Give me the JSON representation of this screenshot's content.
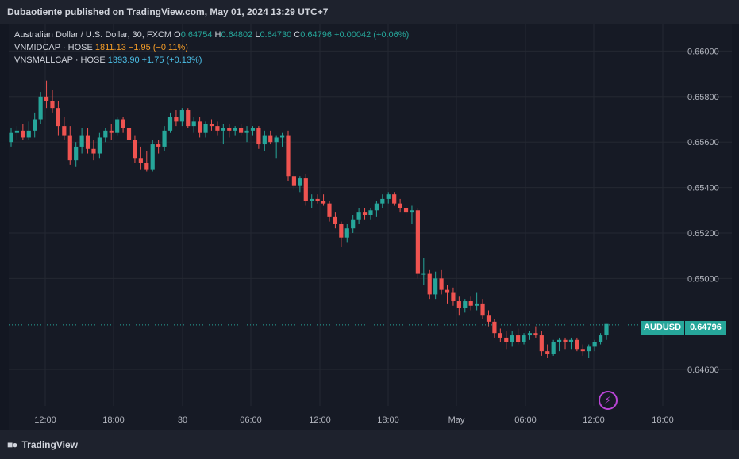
{
  "header": {
    "publisher_text": "Dubaotiente published on TradingView.com, May 01, 2024 13:29 UTC+7"
  },
  "legend": {
    "main": {
      "title": "Australian Dollar / U.S. Dollar, 30, FXCM",
      "o_label": "O",
      "o_value": "0.64754",
      "h_label": "H",
      "h_value": "0.64802",
      "l_label": "L",
      "l_value": "0.64730",
      "c_label": "C",
      "c_value": "0.64796",
      "change": "+0.00042 (+0.06%)"
    },
    "vnmidcap": {
      "label": "VNMIDCAP · HOSE",
      "value": "1811.13",
      "change": "−1.95 (−0.11%)"
    },
    "vnsmallcap": {
      "label": "VNSMALLCAP · HOSE",
      "value": "1393.90",
      "change": "+1.75 (+0.13%)"
    }
  },
  "price_tag": {
    "symbol": "AUDUSD",
    "value": "0.64796"
  },
  "footer": {
    "brand": "TradingView"
  },
  "colors": {
    "up": "#26a69a",
    "down": "#ef5350",
    "grid": "#242832",
    "axis_text": "#b2b5be"
  },
  "icons": {
    "flash": "lightning-icon",
    "logo": "tradingview-logo-icon"
  },
  "chart_data": {
    "type": "candlestick",
    "symbol": "AUDUSD",
    "interval": "30",
    "y_ticks": [
      "0.66000",
      "0.65800",
      "0.65600",
      "0.65400",
      "0.65200",
      "0.65000",
      "0.64600"
    ],
    "y_tick_values": [
      0.66,
      0.658,
      0.656,
      0.654,
      0.652,
      0.65,
      0.646
    ],
    "ylim": [
      0.6444,
      0.6612
    ],
    "x_ticks": [
      "12:00",
      "18:00",
      "30",
      "06:00",
      "12:00",
      "18:00",
      "May",
      "06:00",
      "12:00",
      "18:00"
    ],
    "last_price": 0.64796,
    "grid": true,
    "candles": [
      [
        0.656,
        0.6566,
        0.6558,
        0.6564
      ],
      [
        0.6564,
        0.6567,
        0.6561,
        0.6565
      ],
      [
        0.6565,
        0.6568,
        0.6561,
        0.6562
      ],
      [
        0.6562,
        0.6569,
        0.6561,
        0.6565
      ],
      [
        0.6565,
        0.6573,
        0.6562,
        0.657
      ],
      [
        0.657,
        0.6582,
        0.6568,
        0.658
      ],
      [
        0.658,
        0.6587,
        0.6575,
        0.6578
      ],
      [
        0.6578,
        0.6583,
        0.6573,
        0.6575
      ],
      [
        0.6575,
        0.6578,
        0.6563,
        0.6567
      ],
      [
        0.6567,
        0.6571,
        0.6561,
        0.6563
      ],
      [
        0.6563,
        0.6567,
        0.655,
        0.6552
      ],
      [
        0.6552,
        0.656,
        0.6549,
        0.6558
      ],
      [
        0.6558,
        0.6566,
        0.6555,
        0.6563
      ],
      [
        0.6563,
        0.6566,
        0.6555,
        0.6557
      ],
      [
        0.6557,
        0.6561,
        0.6552,
        0.6555
      ],
      [
        0.6555,
        0.6564,
        0.6553,
        0.6562
      ],
      [
        0.6562,
        0.6566,
        0.656,
        0.6565
      ],
      [
        0.6565,
        0.6568,
        0.6561,
        0.6564
      ],
      [
        0.6564,
        0.6571,
        0.6563,
        0.657
      ],
      [
        0.657,
        0.6571,
        0.6564,
        0.6566
      ],
      [
        0.6566,
        0.6569,
        0.6559,
        0.6561
      ],
      [
        0.6561,
        0.6563,
        0.6551,
        0.6553
      ],
      [
        0.6553,
        0.6558,
        0.6548,
        0.6551
      ],
      [
        0.6551,
        0.6556,
        0.6547,
        0.6548
      ],
      [
        0.6548,
        0.6561,
        0.6547,
        0.6559
      ],
      [
        0.6559,
        0.6561,
        0.6555,
        0.6558
      ],
      [
        0.6558,
        0.6567,
        0.6556,
        0.6565
      ],
      [
        0.6565,
        0.6573,
        0.6564,
        0.6571
      ],
      [
        0.6571,
        0.6574,
        0.6567,
        0.6569
      ],
      [
        0.6569,
        0.6575,
        0.6567,
        0.6574
      ],
      [
        0.6574,
        0.6575,
        0.6566,
        0.6567
      ],
      [
        0.6567,
        0.6571,
        0.6564,
        0.6569
      ],
      [
        0.6569,
        0.6571,
        0.6562,
        0.6564
      ],
      [
        0.6564,
        0.6569,
        0.6562,
        0.6568
      ],
      [
        0.6568,
        0.657,
        0.6565,
        0.6567
      ],
      [
        0.6567,
        0.6569,
        0.6563,
        0.6565
      ],
      [
        0.6565,
        0.6568,
        0.6559,
        0.6566
      ],
      [
        0.6566,
        0.6568,
        0.6562,
        0.6565
      ],
      [
        0.6565,
        0.6567,
        0.6563,
        0.6566
      ],
      [
        0.6566,
        0.6568,
        0.6563,
        0.6564
      ],
      [
        0.6564,
        0.6567,
        0.656,
        0.6565
      ],
      [
        0.6565,
        0.6567,
        0.6563,
        0.6566
      ],
      [
        0.6566,
        0.6567,
        0.6557,
        0.6559
      ],
      [
        0.6559,
        0.6565,
        0.6556,
        0.6563
      ],
      [
        0.6563,
        0.6565,
        0.6559,
        0.656
      ],
      [
        0.656,
        0.6563,
        0.6553,
        0.6562
      ],
      [
        0.6562,
        0.6564,
        0.6558,
        0.6563
      ],
      [
        0.6563,
        0.6565,
        0.6543,
        0.6545
      ],
      [
        0.6545,
        0.6547,
        0.6539,
        0.6541
      ],
      [
        0.6541,
        0.6545,
        0.6538,
        0.6544
      ],
      [
        0.6544,
        0.6546,
        0.6532,
        0.6534
      ],
      [
        0.6534,
        0.6537,
        0.6531,
        0.6535
      ],
      [
        0.6535,
        0.6537,
        0.6533,
        0.6534
      ],
      [
        0.6534,
        0.6537,
        0.6532,
        0.6533
      ],
      [
        0.6533,
        0.6534,
        0.6525,
        0.6527
      ],
      [
        0.6527,
        0.6529,
        0.6522,
        0.6524
      ],
      [
        0.6524,
        0.6525,
        0.6514,
        0.6518
      ],
      [
        0.6518,
        0.6524,
        0.6516,
        0.6522
      ],
      [
        0.6522,
        0.6528,
        0.652,
        0.6526
      ],
      [
        0.6526,
        0.6531,
        0.6524,
        0.6529
      ],
      [
        0.6529,
        0.6531,
        0.6526,
        0.6528
      ],
      [
        0.6528,
        0.6531,
        0.6526,
        0.653
      ],
      [
        0.653,
        0.6534,
        0.6527,
        0.6533
      ],
      [
        0.6533,
        0.6537,
        0.6531,
        0.6535
      ],
      [
        0.6535,
        0.6538,
        0.6533,
        0.6537
      ],
      [
        0.6537,
        0.6538,
        0.6532,
        0.6533
      ],
      [
        0.6533,
        0.6535,
        0.6529,
        0.6531
      ],
      [
        0.6531,
        0.6532,
        0.6527,
        0.6529
      ],
      [
        0.6529,
        0.6532,
        0.6524,
        0.653
      ],
      [
        0.653,
        0.6531,
        0.65,
        0.6502
      ],
      [
        0.6502,
        0.6509,
        0.6497,
        0.6502
      ],
      [
        0.6502,
        0.6504,
        0.6491,
        0.6493
      ],
      [
        0.6493,
        0.6503,
        0.6491,
        0.65
      ],
      [
        0.65,
        0.6504,
        0.6493,
        0.6495
      ],
      [
        0.6495,
        0.6497,
        0.6489,
        0.6494
      ],
      [
        0.6494,
        0.6496,
        0.6488,
        0.649
      ],
      [
        0.649,
        0.6492,
        0.6484,
        0.6487
      ],
      [
        0.6487,
        0.6491,
        0.6485,
        0.649
      ],
      [
        0.649,
        0.6492,
        0.6486,
        0.6488
      ],
      [
        0.6488,
        0.6494,
        0.6486,
        0.6489
      ],
      [
        0.6489,
        0.6491,
        0.6482,
        0.6484
      ],
      [
        0.6484,
        0.6486,
        0.6479,
        0.6481
      ],
      [
        0.6481,
        0.6482,
        0.6474,
        0.6476
      ],
      [
        0.6476,
        0.6478,
        0.6472,
        0.6474
      ],
      [
        0.6474,
        0.6477,
        0.6469,
        0.6472
      ],
      [
        0.6472,
        0.6477,
        0.647,
        0.6475
      ],
      [
        0.6475,
        0.6478,
        0.6471,
        0.6472
      ],
      [
        0.6472,
        0.6476,
        0.6471,
        0.6475
      ],
      [
        0.6475,
        0.6477,
        0.6473,
        0.6476
      ],
      [
        0.6476,
        0.6479,
        0.6474,
        0.6475
      ],
      [
        0.6475,
        0.6477,
        0.6466,
        0.6468
      ],
      [
        0.6468,
        0.6471,
        0.6465,
        0.6467
      ],
      [
        0.6467,
        0.6473,
        0.6466,
        0.6472
      ],
      [
        0.6472,
        0.6474,
        0.6468,
        0.6473
      ],
      [
        0.6473,
        0.6474,
        0.6469,
        0.6472
      ],
      [
        0.6472,
        0.6474,
        0.6469,
        0.6473
      ],
      [
        0.6473,
        0.6474,
        0.6468,
        0.6469
      ],
      [
        0.6469,
        0.6471,
        0.6466,
        0.6468
      ],
      [
        0.6468,
        0.6471,
        0.6465,
        0.647
      ],
      [
        0.647,
        0.6473,
        0.6468,
        0.6472
      ],
      [
        0.6472,
        0.6476,
        0.6471,
        0.6475
      ],
      [
        0.6475,
        0.648,
        0.6473,
        0.648
      ]
    ]
  }
}
